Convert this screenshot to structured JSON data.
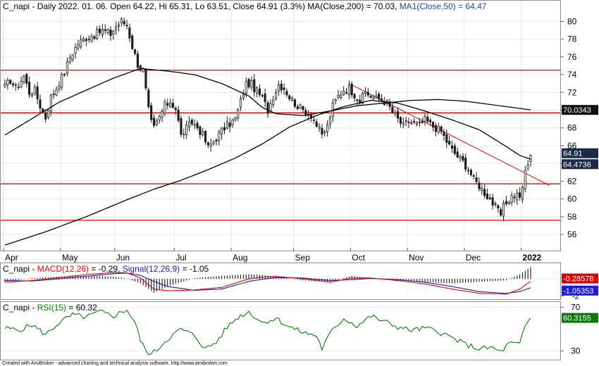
{
  "chart_data": [
    {
      "type": "candlestick",
      "legend": {
        "ticker": "C_napi",
        "info": " - Daily 2022. 01. 06. Open 64.22, Hi 65.31, Lo 63.51, Close 64.91 (3.3%) ",
        "ma200_label": "MA(Close,200) = 70.03, ",
        "ma50_label": "MA1(Close,50) = 64.47"
      },
      "ylim": [
        54.5,
        81.3
      ],
      "yticks": [
        "56",
        "58",
        "60",
        "62",
        "64",
        "66",
        "68",
        "70",
        "72",
        "74",
        "76",
        "78",
        "80"
      ],
      "months": [
        "Apr",
        "May",
        "Jun",
        "Jul",
        "Aug",
        "Sep",
        "Oct",
        "Nov",
        "Dec",
        "2022"
      ],
      "month_start_index": [
        0,
        21,
        41,
        63,
        84,
        107,
        128,
        149,
        170,
        191
      ],
      "session_count": 195,
      "anchors": [
        [
          0,
          72.6
        ],
        [
          2,
          73.4
        ],
        [
          4,
          72.5
        ],
        [
          7,
          73.8
        ],
        [
          9,
          72.0
        ],
        [
          11,
          72.2
        ],
        [
          13,
          70.5
        ],
        [
          15,
          69.2
        ],
        [
          17,
          71.5
        ],
        [
          19,
          72.5
        ],
        [
          22,
          74.3
        ],
        [
          24,
          76.0
        ],
        [
          27,
          77.5
        ],
        [
          30,
          78.2
        ],
        [
          33,
          78.5
        ],
        [
          36,
          79.0
        ],
        [
          39,
          78.6
        ],
        [
          41,
          79.4
        ],
        [
          43,
          80.0
        ],
        [
          45,
          79.6
        ],
        [
          47,
          77.2
        ],
        [
          49,
          75.2
        ],
        [
          51,
          74.5
        ],
        [
          52,
          72.2
        ],
        [
          53,
          70.0
        ],
        [
          54,
          68.6
        ],
        [
          55,
          68.0
        ],
        [
          57,
          69.2
        ],
        [
          59,
          70.5
        ],
        [
          61,
          71.0
        ],
        [
          63,
          70.2
        ],
        [
          64,
          68.7
        ],
        [
          65,
          67.1
        ],
        [
          67,
          68.0
        ],
        [
          69,
          68.6
        ],
        [
          71,
          68.1
        ],
        [
          73,
          67.2
        ],
        [
          75,
          65.8
        ],
        [
          77,
          66.5
        ],
        [
          79,
          67.3
        ],
        [
          81,
          68.0
        ],
        [
          83,
          68.5
        ],
        [
          85,
          69.0
        ],
        [
          87,
          71.0
        ],
        [
          89,
          73.0
        ],
        [
          91,
          72.9
        ],
        [
          93,
          72.1
        ],
        [
          95,
          71.4
        ],
        [
          97,
          70.0
        ],
        [
          99,
          71.6
        ],
        [
          101,
          72.9
        ],
        [
          103,
          72.5
        ],
        [
          105,
          71.5
        ],
        [
          107,
          70.8
        ],
        [
          109,
          70.2
        ],
        [
          111,
          69.8
        ],
        [
          113,
          69.5
        ],
        [
          115,
          68.3
        ],
        [
          117,
          67.1
        ],
        [
          119,
          68.2
        ],
        [
          121,
          70.5
        ],
        [
          123,
          71.6
        ],
        [
          125,
          72.3
        ],
        [
          127,
          72.5
        ],
        [
          129,
          71.8
        ],
        [
          131,
          71.0
        ],
        [
          133,
          72.0
        ],
        [
          135,
          71.6
        ],
        [
          137,
          71.3
        ],
        [
          139,
          71.2
        ],
        [
          141,
          70.8
        ],
        [
          143,
          69.8
        ],
        [
          145,
          69.0
        ],
        [
          147,
          68.2
        ],
        [
          149,
          68.8
        ],
        [
          151,
          68.5
        ],
        [
          153,
          68.3
        ],
        [
          155,
          68.9
        ],
        [
          157,
          68.4
        ],
        [
          159,
          68.0
        ],
        [
          161,
          67.6
        ],
        [
          163,
          66.5
        ],
        [
          165,
          65.5
        ],
        [
          167,
          64.8
        ],
        [
          169,
          64.2
        ],
        [
          171,
          63.4
        ],
        [
          173,
          62.2
        ],
        [
          175,
          61.5
        ],
        [
          177,
          60.7
        ],
        [
          179,
          60.0
        ],
        [
          181,
          59.0
        ],
        [
          183,
          58.2
        ],
        [
          184,
          59.1
        ],
        [
          185,
          59.6
        ],
        [
          187,
          60.3
        ],
        [
          189,
          60.5
        ],
        [
          190,
          60.4
        ],
        [
          191,
          61.0
        ],
        [
          192,
          63.2
        ],
        [
          193,
          64.0
        ],
        [
          194,
          64.9
        ]
      ],
      "hlines": [
        74.5,
        69.7,
        61.7,
        57.6
      ],
      "trendline": [
        [
          127,
          73.0
        ],
        [
          194,
          62.6
        ]
      ],
      "ma200_anchors": [
        [
          0,
          67.2
        ],
        [
          20,
          70.9
        ],
        [
          40,
          73.6
        ],
        [
          50,
          74.7
        ],
        [
          60,
          74.4
        ],
        [
          70,
          74.0
        ],
        [
          80,
          73.0
        ],
        [
          90,
          71.6
        ],
        [
          95,
          70.3
        ],
        [
          100,
          69.6
        ],
        [
          110,
          69.4
        ],
        [
          120,
          69.9
        ],
        [
          130,
          70.5
        ],
        [
          140,
          70.8
        ],
        [
          150,
          71.1
        ],
        [
          160,
          71.2
        ],
        [
          170,
          71.0
        ],
        [
          180,
          70.6
        ],
        [
          190,
          70.2
        ],
        [
          194,
          70.03
        ]
      ],
      "ma50_anchors": [
        [
          0,
          54.8
        ],
        [
          15,
          56.3
        ],
        [
          30,
          58.0
        ],
        [
          45,
          59.9
        ],
        [
          55,
          61.1
        ],
        [
          65,
          62.1
        ],
        [
          75,
          63.3
        ],
        [
          85,
          64.6
        ],
        [
          95,
          66.2
        ],
        [
          105,
          68.1
        ],
        [
          115,
          69.4
        ],
        [
          125,
          70.4
        ],
        [
          135,
          71.1
        ],
        [
          145,
          70.8
        ],
        [
          155,
          69.9
        ],
        [
          165,
          68.9
        ],
        [
          175,
          67.8
        ],
        [
          185,
          65.9
        ],
        [
          190,
          64.9
        ],
        [
          194,
          64.47
        ]
      ],
      "price_tags": {
        "ma200": "70.0343",
        "close": "64.91",
        "ma50": "64.4736"
      },
      "colors": {
        "up": "#ffffff",
        "down": "#1a1a1a",
        "line": "#000000",
        "support": "#e00000",
        "tag": "#1c2a4a"
      }
    },
    {
      "type": "macd",
      "legend": {
        "ticker": "C_napi",
        "macd_label": "MACD(12,26)",
        "macd_value": " = -0.29, ",
        "signal_label": "Signal(12,26,9)",
        "signal_value": " = -1.05"
      },
      "ylim": [
        -2.3,
        1.5
      ],
      "yticks": [
        "-2"
      ],
      "macd_anchors": [
        [
          0,
          -0.4
        ],
        [
          10,
          -0.2
        ],
        [
          20,
          0.15
        ],
        [
          30,
          0.5
        ],
        [
          40,
          0.75
        ],
        [
          45,
          0.7
        ],
        [
          50,
          0.1
        ],
        [
          55,
          -1.2
        ],
        [
          60,
          -1.4
        ],
        [
          70,
          -1.3
        ],
        [
          80,
          -1.0
        ],
        [
          90,
          0.0
        ],
        [
          95,
          0.2
        ],
        [
          100,
          0.3
        ],
        [
          110,
          0.0
        ],
        [
          120,
          -0.4
        ],
        [
          128,
          0.1
        ],
        [
          135,
          0.1
        ],
        [
          145,
          -0.2
        ],
        [
          155,
          -0.6
        ],
        [
          165,
          -1.2
        ],
        [
          175,
          -1.7
        ],
        [
          185,
          -1.8
        ],
        [
          190,
          -1.2
        ],
        [
          194,
          -0.29
        ]
      ],
      "signal_anchors": [
        [
          0,
          -0.2
        ],
        [
          10,
          -0.25
        ],
        [
          20,
          0.0
        ],
        [
          30,
          0.3
        ],
        [
          40,
          0.6
        ],
        [
          45,
          0.68
        ],
        [
          50,
          0.4
        ],
        [
          55,
          -0.3
        ],
        [
          60,
          -0.9
        ],
        [
          70,
          -1.35
        ],
        [
          80,
          -1.2
        ],
        [
          90,
          -0.3
        ],
        [
          95,
          -0.05
        ],
        [
          100,
          0.15
        ],
        [
          110,
          0.1
        ],
        [
          120,
          -0.2
        ],
        [
          128,
          -0.1
        ],
        [
          135,
          0.05
        ],
        [
          145,
          -0.1
        ],
        [
          155,
          -0.4
        ],
        [
          165,
          -0.9
        ],
        [
          175,
          -1.5
        ],
        [
          185,
          -1.7
        ],
        [
          190,
          -1.5
        ],
        [
          194,
          -1.05
        ]
      ],
      "price_tags": {
        "macd": "-0.28578",
        "signal": "-1.05353"
      },
      "colors": {
        "macd": "#e00000",
        "signal": "#1a1aa0",
        "histogram": "#000000",
        "tag_macd": "#e00000",
        "tag_signal": "#1a1ae0"
      }
    },
    {
      "type": "rsi",
      "legend": {
        "ticker": "C_napi",
        "rsi_label": "RSI(15)",
        "rsi_value": " = 60.32"
      },
      "ylim": [
        24,
        73
      ],
      "yticks": [
        "70",
        "30"
      ],
      "rsi_anchors": [
        [
          0,
          51
        ],
        [
          5,
          49
        ],
        [
          10,
          54
        ],
        [
          15,
          45
        ],
        [
          20,
          56
        ],
        [
          25,
          63
        ],
        [
          30,
          61
        ],
        [
          35,
          66
        ],
        [
          40,
          62
        ],
        [
          45,
          68
        ],
        [
          48,
          56
        ],
        [
          50,
          40
        ],
        [
          52,
          30
        ],
        [
          54,
          27
        ],
        [
          56,
          31
        ],
        [
          60,
          41
        ],
        [
          65,
          50
        ],
        [
          70,
          44
        ],
        [
          74,
          32
        ],
        [
          78,
          38
        ],
        [
          82,
          52
        ],
        [
          86,
          61
        ],
        [
          90,
          66
        ],
        [
          95,
          56
        ],
        [
          100,
          60
        ],
        [
          105,
          52
        ],
        [
          110,
          47
        ],
        [
          115,
          44
        ],
        [
          117,
          32
        ],
        [
          120,
          46
        ],
        [
          125,
          60
        ],
        [
          130,
          53
        ],
        [
          135,
          62
        ],
        [
          140,
          57
        ],
        [
          145,
          52
        ],
        [
          150,
          49
        ],
        [
          155,
          51
        ],
        [
          160,
          48
        ],
        [
          165,
          42
        ],
        [
          170,
          36
        ],
        [
          175,
          32
        ],
        [
          180,
          33
        ],
        [
          183,
          29
        ],
        [
          186,
          37
        ],
        [
          190,
          36
        ],
        [
          192,
          53
        ],
        [
          194,
          60.32
        ]
      ],
      "price_tags": {
        "rsi": "60.3155"
      },
      "colors": {
        "line": "#0a7a0a",
        "tag": "#0a7a0a"
      }
    }
  ],
  "footer": {
    "text": "Created with AmiBroker - advanced charting and technical analysis software. http://www.amibroker.com"
  }
}
